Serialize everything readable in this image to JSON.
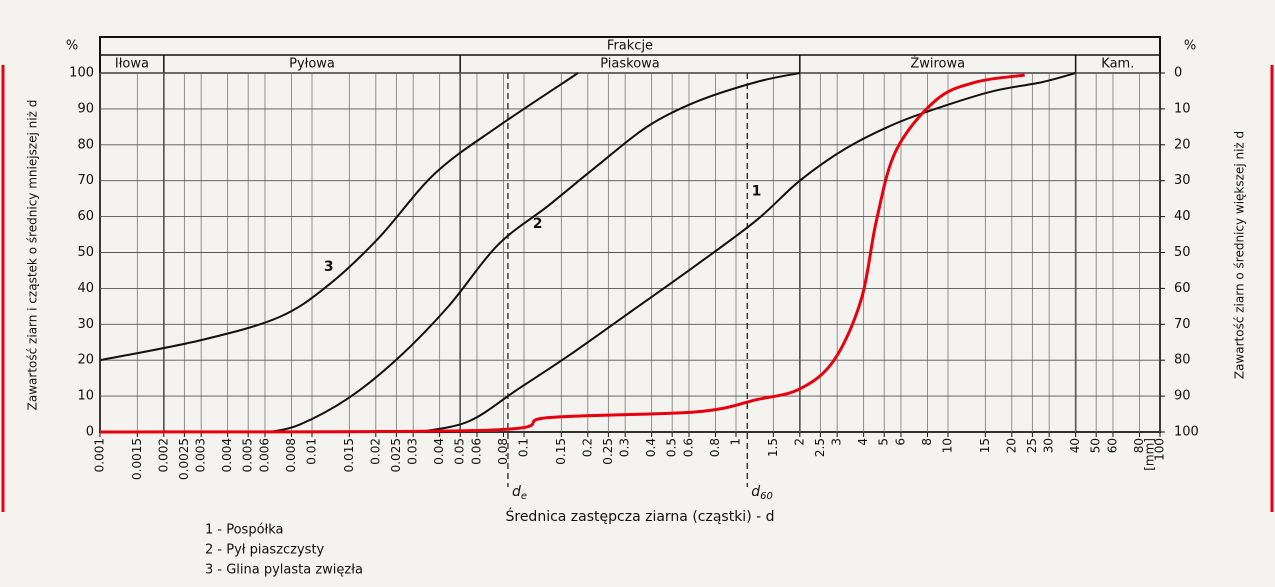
{
  "chart_data": {
    "type": "line",
    "header": "Frakcje",
    "fractions": [
      {
        "name": "Iłowa",
        "from": 0.001,
        "to": 0.002
      },
      {
        "name": "Pyłowa",
        "from": 0.002,
        "to": 0.05
      },
      {
        "name": "Piaskowa",
        "from": 0.05,
        "to": 2
      },
      {
        "name": "Żwirowa",
        "from": 2,
        "to": 40
      },
      {
        "name": "Kam.",
        "from": 40,
        "to": 100
      }
    ],
    "y_label": "Zawartość ziarn i cząstek o średnicy mniejszej niż d",
    "y2_label": "Zawartość ziarn o średnicy większej niż d",
    "y_unit": "%",
    "y2_unit": "%",
    "x_label": "Średnica zastępcza ziarna (cząstki) - d",
    "x_unit": "[mm]",
    "x_log": true,
    "grid": true,
    "xlim": [
      0.001,
      100
    ],
    "xticks": [
      0.001,
      0.0015,
      0.002,
      0.0025,
      0.003,
      0.004,
      0.005,
      0.006,
      0.008,
      0.01,
      0.015,
      0.02,
      0.025,
      0.03,
      0.04,
      0.05,
      0.06,
      0.08,
      0.1,
      0.15,
      0.2,
      0.25,
      0.3,
      0.4,
      0.5,
      0.6,
      0.8,
      1,
      1.5,
      2,
      2.5,
      3,
      4,
      5,
      6,
      8,
      10,
      15,
      20,
      25,
      30,
      40,
      50,
      60,
      80,
      100
    ],
    "ylim": [
      0,
      100
    ],
    "yticks": [
      0,
      10,
      20,
      30,
      40,
      50,
      60,
      70,
      80,
      90,
      100
    ],
    "y2lim": [
      100,
      0
    ],
    "y2ticks": [
      0,
      10,
      20,
      30,
      40,
      50,
      60,
      70,
      80,
      90,
      100
    ],
    "markers": [
      {
        "label": "d",
        "subscript": "e",
        "x": 0.084
      },
      {
        "label": "d",
        "subscript": "60",
        "x": 1.13
      }
    ],
    "series": [
      {
        "name": "1 - Pospółka",
        "color": "#111111",
        "x": [
          0.032,
          0.055,
          0.094,
          0.16,
          0.31,
          0.65,
          1.25,
          2,
          3.3,
          5.7,
          9.8,
          16.5,
          28,
          40
        ],
        "values": [
          0,
          3,
          12,
          21,
          33,
          46.5,
          59,
          70,
          79,
          86,
          91,
          95,
          97.5,
          100
        ]
      },
      {
        "name": "2 - Pył piaszczysty",
        "color": "#111111",
        "x": [
          0.0063,
          0.0087,
          0.0149,
          0.0255,
          0.044,
          0.075,
          0.13,
          0.22,
          0.38,
          0.65,
          1.25,
          2
        ],
        "values": [
          0,
          2,
          9.5,
          20.6,
          35,
          52,
          63,
          74,
          85,
          92,
          97.5,
          100
        ]
      },
      {
        "name": "3 - Glina pylasta zwięzła",
        "color": "#111111",
        "x": [
          0.001,
          0.003,
          0.007,
          0.012,
          0.0206,
          0.038,
          0.075,
          0.18
        ],
        "values": [
          20,
          25.6,
          32,
          41,
          54,
          72,
          85,
          100
        ]
      },
      {
        "color": "#e8000f",
        "x": [
          0.001,
          0.067,
          0.13,
          0.65,
          1.25,
          2,
          2.9,
          3.9,
          4.6,
          5.7,
          8.8,
          13.6,
          23
        ],
        "values": [
          0,
          0.5,
          4,
          5.6,
          9,
          12,
          20,
          37,
          59,
          78.5,
          92.5,
          97.5,
          99.4
        ]
      }
    ],
    "annotations": [
      {
        "text": "1",
        "x": 1.25,
        "y": 67
      },
      {
        "text": "2",
        "x": 0.116,
        "y": 58
      },
      {
        "text": "3",
        "x": 0.012,
        "y": 46
      }
    ]
  }
}
